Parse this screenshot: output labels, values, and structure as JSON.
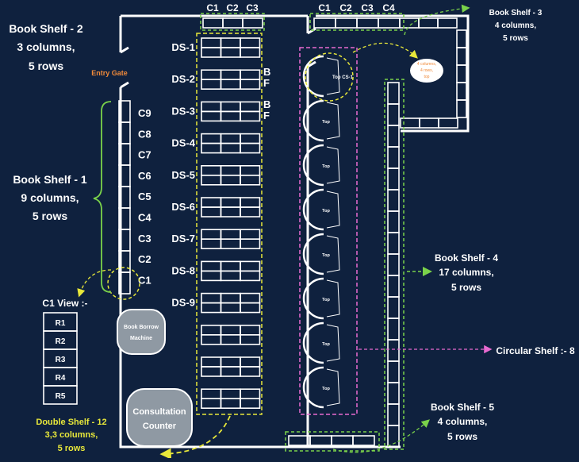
{
  "colors": {
    "background": "#0f213e",
    "shelf": "#ffffff",
    "yellow_dash": "#e8e83a",
    "green_dash": "#7ad24a",
    "magenta_dash": "#e86ad0",
    "orange_text": "#f08a3a",
    "machine_fill": "#8f99a3"
  },
  "labels": {
    "bs2": [
      "Book Shelf - 2",
      "3 columns,",
      "5 rows"
    ],
    "bs3": [
      "Book Shelf - 3",
      "4 columns,",
      "5 rows"
    ],
    "bs1": [
      "Book Shelf - 1",
      "9 columns,",
      "5 rows"
    ],
    "bs4": [
      "Book Shelf - 4",
      "17 columns,",
      "5 rows"
    ],
    "bs5": [
      "Book Shelf - 5",
      "4 columns,",
      "5 rows"
    ],
    "double": [
      "Double Shelf - 12",
      "3,3 columns,",
      "5 rows"
    ],
    "circular": "Circular Shelf :- 8",
    "entry_gate": "Entry Gate",
    "c1_view": "C1 View :-",
    "cloud": [
      "4 columns,",
      "4 rows,",
      "top"
    ],
    "top_cs1": "Top CS-1",
    "top": "Top",
    "book_borrow": [
      "Book Borrow",
      "Machine"
    ],
    "consultation": [
      "Consultation",
      "Counter"
    ],
    "bf": [
      "B",
      "F"
    ]
  },
  "bs2_cols": [
    "C1",
    "C2",
    "C3"
  ],
  "bs3_cols": [
    "C1",
    "C2",
    "C3",
    "C4"
  ],
  "bs1_cols": [
    "C9",
    "C8",
    "C7",
    "C6",
    "C5",
    "C4",
    "C3",
    "C2",
    "C1"
  ],
  "double_shelves": [
    "DS-1",
    "DS-2",
    "DS-3",
    "DS-4",
    "DS-5",
    "DS-6",
    "DS-7",
    "DS-8",
    "DS-9"
  ],
  "c1_rows": [
    "R1",
    "R2",
    "R3",
    "R4",
    "R5"
  ]
}
